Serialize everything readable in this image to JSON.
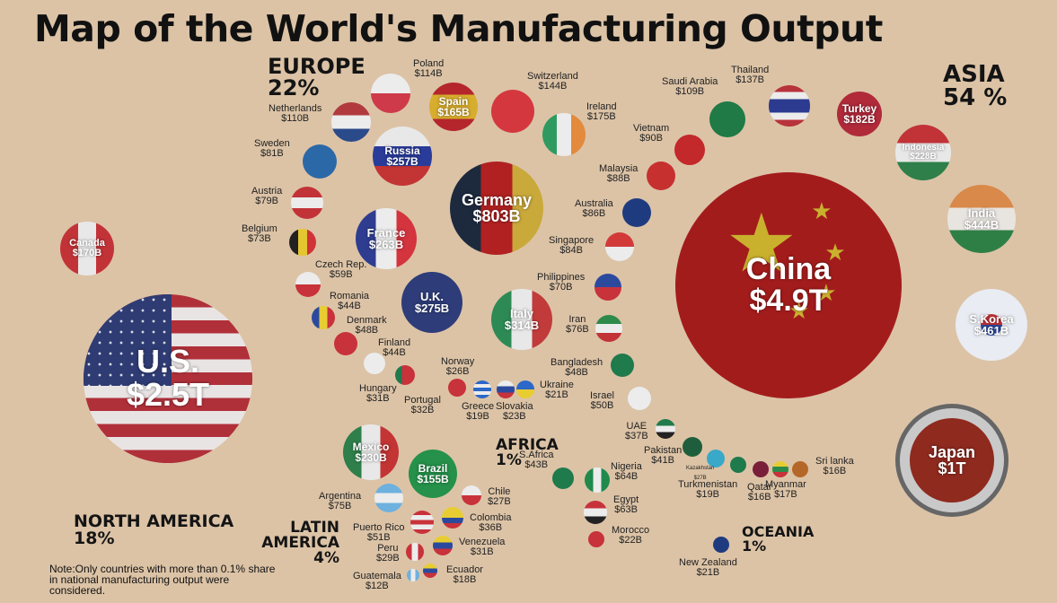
{
  "title": "Map of the World's Manufacturing Output",
  "regions": [
    {
      "name": "EUROPE",
      "share": "22%"
    },
    {
      "name": "ASIA",
      "share": "54 %"
    },
    {
      "name": "AFRICA",
      "share": "1%"
    },
    {
      "name": "NORTH AMERICA",
      "share": "18%"
    },
    {
      "name": "LATIN AMERICA",
      "share": "4%"
    },
    {
      "name": "OCEANIA",
      "share": "1%"
    }
  ],
  "note": "Note:Only countries with more than 0.1% share in national manufacturing output were considered.",
  "countries": [
    {
      "name": "China",
      "value": "$4.9T",
      "label": "inside",
      "flag": "china"
    },
    {
      "name": "U.S.",
      "value": "$2.5T",
      "label": "inside",
      "flag": "usa"
    },
    {
      "name": "Japan",
      "value": "$1T",
      "label": "inside",
      "flag": "japan"
    },
    {
      "name": "Germany",
      "value": "$803B",
      "label": "inside",
      "flag": "germany"
    },
    {
      "name": "S.Korea",
      "value": "$461B",
      "label": "inside",
      "flag": "korea"
    },
    {
      "name": "India",
      "value": "$444B",
      "label": "inside",
      "flag": "india"
    },
    {
      "name": "Italy",
      "value": "$314B",
      "label": "inside",
      "flag": "italy"
    },
    {
      "name": "U.K.",
      "value": "$275B",
      "label": "inside",
      "flag": "uk"
    },
    {
      "name": "France",
      "value": "$263B",
      "label": "inside",
      "flag": "france"
    },
    {
      "name": "Russia",
      "value": "$257B",
      "label": "inside",
      "flag": "russia"
    },
    {
      "name": "Mexico",
      "value": "$230B",
      "label": "inside",
      "flag": "mexico"
    },
    {
      "name": "Indonesia",
      "value": "$228B",
      "label": "inside",
      "flag": "indonesia"
    },
    {
      "name": "Turkey",
      "value": "$182B",
      "label": "inside",
      "flag": "turkey"
    },
    {
      "name": "Ireland",
      "value": "$175B",
      "label": "outside",
      "flag": "ireland"
    },
    {
      "name": "Canada",
      "value": "$170B",
      "label": "inside",
      "flag": "canada"
    },
    {
      "name": "Spain",
      "value": "$165B",
      "label": "inside",
      "flag": "spain"
    },
    {
      "name": "Brazil",
      "value": "$155B",
      "label": "inside",
      "flag": "brazil"
    },
    {
      "name": "Switzerland",
      "value": "$144B",
      "label": "outside",
      "flag": "switzerland"
    },
    {
      "name": "Thailand",
      "value": "$137B",
      "label": "outside",
      "flag": "thailand"
    },
    {
      "name": "Poland",
      "value": "$114B",
      "label": "outside",
      "flag": "poland"
    },
    {
      "name": "Netherlands",
      "value": "$110B",
      "label": "outside",
      "flag": "netherlands"
    },
    {
      "name": "Saudi Arabia",
      "value": "$109B",
      "label": "outside",
      "flag": "saudi"
    },
    {
      "name": "Vietnam",
      "value": "$90B",
      "label": "outside",
      "flag": "vietnam"
    },
    {
      "name": "Malaysia",
      "value": "$88B",
      "label": "outside",
      "flag": "malaysia"
    },
    {
      "name": "Australia",
      "value": "$86B",
      "label": "outside",
      "flag": "australia"
    },
    {
      "name": "Singapore",
      "value": "$84B",
      "label": "outside",
      "flag": "singapore"
    },
    {
      "name": "Sweden",
      "value": "$81B",
      "label": "outside",
      "flag": "sweden"
    },
    {
      "name": "Austria",
      "value": "$79B",
      "label": "outside",
      "flag": "austria"
    },
    {
      "name": "Iran",
      "value": "$76B",
      "label": "outside",
      "flag": "iran"
    },
    {
      "name": "Argentina",
      "value": "$75B",
      "label": "outside",
      "flag": "argentina"
    },
    {
      "name": "Belgium",
      "value": "$73B",
      "label": "outside",
      "flag": "belgium"
    },
    {
      "name": "Philippines",
      "value": "$70B",
      "label": "outside",
      "flag": "philippines"
    },
    {
      "name": "Nigeria",
      "value": "$64B",
      "label": "outside",
      "flag": "nigeria"
    },
    {
      "name": "Egypt",
      "value": "$63B",
      "label": "outside",
      "flag": "egypt"
    },
    {
      "name": "Czech Rep.",
      "value": "$59B",
      "label": "outside",
      "flag": "czech"
    },
    {
      "name": "Puerto Rico",
      "value": "$51B",
      "label": "outside",
      "flag": "puertorico"
    },
    {
      "name": "Israel",
      "value": "$50B",
      "label": "outside",
      "flag": "israel"
    },
    {
      "name": "Bangladesh",
      "value": "$48B",
      "label": "outside",
      "flag": "bangladesh"
    },
    {
      "name": "Denmark",
      "value": "$48B",
      "label": "outside",
      "flag": "denmark"
    },
    {
      "name": "Romania",
      "value": "$44B",
      "label": "outside",
      "flag": "romania"
    },
    {
      "name": "Finland",
      "value": "$44B",
      "label": "outside",
      "flag": "finland"
    },
    {
      "name": "S.Africa",
      "value": "$43B",
      "label": "outside",
      "flag": "safrica"
    },
    {
      "name": "Pakistan",
      "value": "$41B",
      "label": "outside",
      "flag": "pakistan"
    },
    {
      "name": "UAE",
      "value": "$37B",
      "label": "outside",
      "flag": "uae"
    },
    {
      "name": "Colombia",
      "value": "$36B",
      "label": "outside",
      "flag": "colombia"
    },
    {
      "name": "Portugal",
      "value": "$32B",
      "label": "outside",
      "flag": "portugal"
    },
    {
      "name": "Hungary",
      "value": "$31B",
      "label": "outside",
      "flag": "hungary"
    },
    {
      "name": "Venezuela",
      "value": "$31B",
      "label": "outside",
      "flag": "venezuela"
    },
    {
      "name": "Peru",
      "value": "$29B",
      "label": "outside",
      "flag": "peru"
    },
    {
      "name": "Chile",
      "value": "$27B",
      "label": "outside",
      "flag": "chile"
    },
    {
      "name": "Kazakhstan",
      "value": "$27B",
      "label": "outside",
      "flag": "kazakhstan"
    },
    {
      "name": "Norway",
      "value": "$26B",
      "label": "outside",
      "flag": "norway"
    },
    {
      "name": "Slovakia",
      "value": "$23B",
      "label": "outside",
      "flag": "slovakia"
    },
    {
      "name": "Morocco",
      "value": "$22B",
      "label": "outside",
      "flag": "morocco"
    },
    {
      "name": "Ukraine",
      "value": "$21B",
      "label": "outside",
      "flag": "ukraine"
    },
    {
      "name": "New Zealand",
      "value": "$21B",
      "label": "outside",
      "flag": "newzealand"
    },
    {
      "name": "Greece",
      "value": "$19B",
      "label": "outside",
      "flag": "greece"
    },
    {
      "name": "Turkmenistan",
      "value": "$19B",
      "label": "outside",
      "flag": "turkmenistan"
    },
    {
      "name": "Ecuador",
      "value": "$18B",
      "label": "outside",
      "flag": "ecuador"
    },
    {
      "name": "Myanmar",
      "value": "$17B",
      "label": "outside",
      "flag": "myanmar"
    },
    {
      "name": "Qatar",
      "value": "$16B",
      "label": "outside",
      "flag": "qatar"
    },
    {
      "name": "Sri lanka",
      "value": "$16B",
      "label": "outside",
      "flag": "srilanka"
    },
    {
      "name": "Guatemala",
      "value": "$12B",
      "label": "outside",
      "flag": "guatemala"
    }
  ],
  "chart_data": {
    "type": "bubble",
    "units": "USD",
    "series": [
      {
        "country": "China",
        "value_billion": 4900
      },
      {
        "country": "U.S.",
        "value_billion": 2500
      },
      {
        "country": "Japan",
        "value_billion": 1000
      },
      {
        "country": "Germany",
        "value_billion": 803
      },
      {
        "country": "S.Korea",
        "value_billion": 461
      },
      {
        "country": "India",
        "value_billion": 444
      },
      {
        "country": "Italy",
        "value_billion": 314
      },
      {
        "country": "U.K.",
        "value_billion": 275
      },
      {
        "country": "France",
        "value_billion": 263
      },
      {
        "country": "Russia",
        "value_billion": 257
      },
      {
        "country": "Mexico",
        "value_billion": 230
      },
      {
        "country": "Indonesia",
        "value_billion": 228
      },
      {
        "country": "Turkey",
        "value_billion": 182
      },
      {
        "country": "Ireland",
        "value_billion": 175
      },
      {
        "country": "Canada",
        "value_billion": 170
      },
      {
        "country": "Spain",
        "value_billion": 165
      },
      {
        "country": "Brazil",
        "value_billion": 155
      },
      {
        "country": "Switzerland",
        "value_billion": 144
      },
      {
        "country": "Thailand",
        "value_billion": 137
      },
      {
        "country": "Poland",
        "value_billion": 114
      },
      {
        "country": "Netherlands",
        "value_billion": 110
      },
      {
        "country": "Saudi Arabia",
        "value_billion": 109
      },
      {
        "country": "Vietnam",
        "value_billion": 90
      },
      {
        "country": "Malaysia",
        "value_billion": 88
      },
      {
        "country": "Australia",
        "value_billion": 86
      },
      {
        "country": "Singapore",
        "value_billion": 84
      },
      {
        "country": "Sweden",
        "value_billion": 81
      },
      {
        "country": "Austria",
        "value_billion": 79
      },
      {
        "country": "Iran",
        "value_billion": 76
      },
      {
        "country": "Argentina",
        "value_billion": 75
      },
      {
        "country": "Belgium",
        "value_billion": 73
      },
      {
        "country": "Philippines",
        "value_billion": 70
      },
      {
        "country": "Nigeria",
        "value_billion": 64
      },
      {
        "country": "Egypt",
        "value_billion": 63
      },
      {
        "country": "Czech Rep.",
        "value_billion": 59
      },
      {
        "country": "Puerto Rico",
        "value_billion": 51
      },
      {
        "country": "Israel",
        "value_billion": 50
      },
      {
        "country": "Bangladesh",
        "value_billion": 48
      },
      {
        "country": "Denmark",
        "value_billion": 48
      },
      {
        "country": "Romania",
        "value_billion": 44
      },
      {
        "country": "Finland",
        "value_billion": 44
      },
      {
        "country": "S.Africa",
        "value_billion": 43
      },
      {
        "country": "Pakistan",
        "value_billion": 41
      },
      {
        "country": "UAE",
        "value_billion": 37
      },
      {
        "country": "Colombia",
        "value_billion": 36
      },
      {
        "country": "Portugal",
        "value_billion": 32
      },
      {
        "country": "Hungary",
        "value_billion": 31
      },
      {
        "country": "Venezuela",
        "value_billion": 31
      },
      {
        "country": "Peru",
        "value_billion": 29
      },
      {
        "country": "Chile",
        "value_billion": 27
      },
      {
        "country": "Kazakhstan",
        "value_billion": 27
      },
      {
        "country": "Norway",
        "value_billion": 26
      },
      {
        "country": "Slovakia",
        "value_billion": 23
      },
      {
        "country": "Morocco",
        "value_billion": 22
      },
      {
        "country": "Ukraine",
        "value_billion": 21
      },
      {
        "country": "New Zealand",
        "value_billion": 21
      },
      {
        "country": "Greece",
        "value_billion": 19
      },
      {
        "country": "Turkmenistan",
        "value_billion": 19
      },
      {
        "country": "Ecuador",
        "value_billion": 18
      },
      {
        "country": "Myanmar",
        "value_billion": 17
      },
      {
        "country": "Qatar",
        "value_billion": 16
      },
      {
        "country": "Sri lanka",
        "value_billion": 16
      },
      {
        "country": "Guatemala",
        "value_billion": 12
      }
    ]
  }
}
